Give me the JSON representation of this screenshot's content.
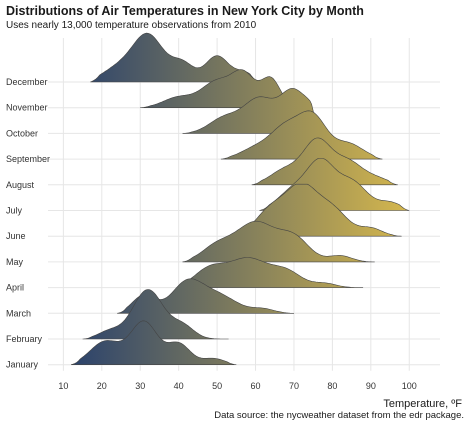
{
  "title": "Distributions of Air Temperatures in New York City by Month",
  "subtitle": "Uses nearly 13,000 temperature observations from 2010",
  "caption": "Data source: the nycweather dataset from the edr package.",
  "colors": {
    "low": "#1f3a6e",
    "high": "#e5c24a",
    "grid": "#e6e6e6",
    "outline": "#444444"
  },
  "chart_data": {
    "type": "ridgeline",
    "xlabel": "Temperature, ºF",
    "xlim": [
      6,
      108
    ],
    "xticks": [
      10,
      20,
      30,
      40,
      50,
      60,
      70,
      80,
      90,
      100
    ],
    "grid": true,
    "fill": "gradient by temperature",
    "series": [
      {
        "name": "January",
        "range": [
          12,
          55
        ],
        "peaks": [
          [
            21,
            0.45,
            4
          ],
          [
            31,
            0.82,
            3.5
          ],
          [
            40,
            0.4,
            3
          ],
          [
            49,
            0.12,
            3
          ]
        ]
      },
      {
        "name": "February",
        "range": [
          15,
          53
        ],
        "peaks": [
          [
            22,
            0.15,
            3
          ],
          [
            32,
            0.95,
            4
          ],
          [
            41,
            0.25,
            3
          ]
        ]
      },
      {
        "name": "March",
        "range": [
          24,
          70
        ],
        "peaks": [
          [
            31,
            0.35,
            3
          ],
          [
            42,
            0.55,
            4
          ],
          [
            50,
            0.35,
            5
          ],
          [
            62,
            0.08,
            3
          ]
        ]
      },
      {
        "name": "April",
        "range": [
          40,
          88
        ],
        "peaks": [
          [
            48,
            0.35,
            4
          ],
          [
            58,
            0.55,
            5
          ],
          [
            68,
            0.3,
            4
          ],
          [
            78,
            0.08,
            3
          ]
        ]
      },
      {
        "name": "May",
        "range": [
          41,
          91
        ],
        "peaks": [
          [
            50,
            0.3,
            4
          ],
          [
            60,
            0.75,
            5
          ],
          [
            70,
            0.45,
            4
          ],
          [
            82,
            0.12,
            3
          ]
        ]
      },
      {
        "name": "June",
        "range": [
          53,
          98
        ],
        "peaks": [
          [
            64,
            0.5,
            4
          ],
          [
            72,
            0.9,
            4
          ],
          [
            80,
            0.5,
            4
          ],
          [
            90,
            0.15,
            3
          ]
        ]
      },
      {
        "name": "July",
        "range": [
          61,
          100
        ],
        "peaks": [
          [
            70,
            0.4,
            4
          ],
          [
            77,
            0.85,
            3.5
          ],
          [
            85,
            0.55,
            4
          ],
          [
            95,
            0.15,
            3
          ]
        ]
      },
      {
        "name": "August",
        "range": [
          59,
          97
        ],
        "peaks": [
          [
            68,
            0.3,
            4
          ],
          [
            76,
            0.8,
            3.5
          ],
          [
            84,
            0.45,
            4
          ],
          [
            92,
            0.1,
            3
          ]
        ]
      },
      {
        "name": "September",
        "range": [
          51,
          93
        ],
        "peaks": [
          [
            60,
            0.2,
            4
          ],
          [
            68,
            0.6,
            4
          ],
          [
            75,
            0.75,
            3.5
          ],
          [
            84,
            0.3,
            4
          ]
        ]
      },
      {
        "name": "October",
        "range": [
          41,
          77
        ],
        "peaks": [
          [
            52,
            0.3,
            4
          ],
          [
            61,
            0.65,
            4
          ],
          [
            70,
            0.8,
            3.5
          ],
          [
            75,
            0.25,
            2
          ]
        ]
      },
      {
        "name": "November",
        "range": [
          30,
          72
        ],
        "peaks": [
          [
            40,
            0.2,
            4
          ],
          [
            50,
            0.5,
            4
          ],
          [
            57,
            0.6,
            3
          ],
          [
            64,
            0.55,
            2.5
          ]
        ]
      },
      {
        "name": "December",
        "range": [
          17,
          61
        ],
        "peaks": [
          [
            24,
            0.25,
            4
          ],
          [
            32,
            0.9,
            4
          ],
          [
            41,
            0.35,
            3
          ],
          [
            50,
            0.5,
            3
          ],
          [
            57,
            0.18,
            2.5
          ]
        ]
      }
    ]
  }
}
